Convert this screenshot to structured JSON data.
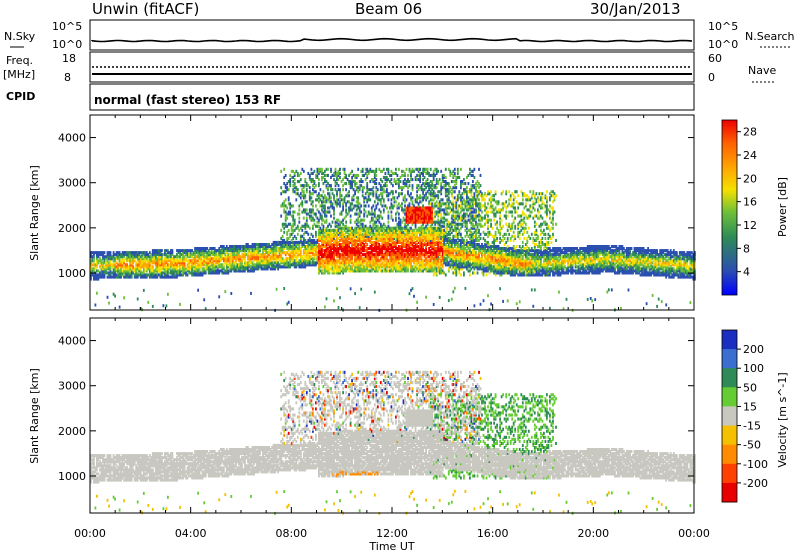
{
  "header": {
    "station": "Unwin (fitACF)",
    "beam": "Beam 06",
    "date": "30/Jan/2013"
  },
  "top_panels": {
    "nsky_label": "N.Sky",
    "nsky_ticks": [
      "10^5",
      "10^0"
    ],
    "nsearch_label": "N.Search",
    "nsearch_ticks": [
      "10^5",
      "10^0"
    ],
    "freq_label": "Freq.",
    "freq_unit": "[MHz]",
    "freq_ticks": [
      "18",
      "8"
    ],
    "nave_label": "Nave",
    "nave_ticks": [
      "60",
      "0"
    ],
    "cpid_label": "CPID",
    "cpid_value": "normal (fast stereo) 153 RF"
  },
  "chart_data": [
    {
      "type": "heatmap",
      "title": "",
      "xlabel": "Time UT",
      "ylabel": "Slant Range [km]",
      "x_ticks": [
        "00:00",
        "04:00",
        "08:00",
        "12:00",
        "16:00",
        "20:00",
        "00:00"
      ],
      "xlim_hours": [
        0,
        24
      ],
      "ylim": [
        180,
        4500
      ],
      "y_ticks": [
        1000,
        2000,
        3000,
        4000
      ],
      "colorbar": {
        "label": "Power [dB]",
        "ticks": [
          4,
          8,
          12,
          16,
          20,
          24,
          28
        ],
        "range": [
          0,
          30
        ],
        "colors": [
          "#0000ff",
          "#2a4fb0",
          "#2e8b57",
          "#6bbf3a",
          "#f5e000",
          "#ffa500",
          "#ff6000",
          "#ee0000"
        ]
      },
      "features": [
        {
          "desc": "main echo band",
          "time_start": 0,
          "time_end": 24,
          "range_center_km": [
            1150,
            1200,
            1350,
            1500,
            1500,
            1200,
            1300,
            1150
          ]
        },
        {
          "desc": "strong echoes",
          "time_start": 9,
          "time_end": 14,
          "range_km": [
            900,
            2400
          ],
          "power_db": 28
        }
      ]
    },
    {
      "type": "heatmap",
      "title": "",
      "xlabel": "Time UT",
      "ylabel": "Slant Range [km]",
      "x_ticks": [
        "00:00",
        "04:00",
        "08:00",
        "12:00",
        "16:00",
        "20:00",
        "00:00"
      ],
      "xlim_hours": [
        0,
        24
      ],
      "ylim": [
        180,
        4500
      ],
      "y_ticks": [
        1000,
        2000,
        3000,
        4000
      ],
      "colorbar": {
        "label": "Velocity [m s^-1]",
        "ticks": [
          200,
          100,
          50,
          15,
          -15,
          -50,
          -100,
          -200
        ],
        "colors": [
          "#1a2fbf",
          "#3a6fd0",
          "#2e8b57",
          "#66cc33",
          "#c8c8c0",
          "#f5c000",
          "#ff8c00",
          "#ff4000",
          "#e80000"
        ]
      },
      "features": [
        {
          "desc": "ground scatter (low velocity)",
          "time_start": 0,
          "time_end": 24,
          "velocity": 0
        },
        {
          "desc": "positive velocity patches",
          "time_start": 14,
          "time_end": 18.5,
          "range_km": [
            1000,
            2800
          ],
          "velocity": 50
        }
      ]
    }
  ]
}
